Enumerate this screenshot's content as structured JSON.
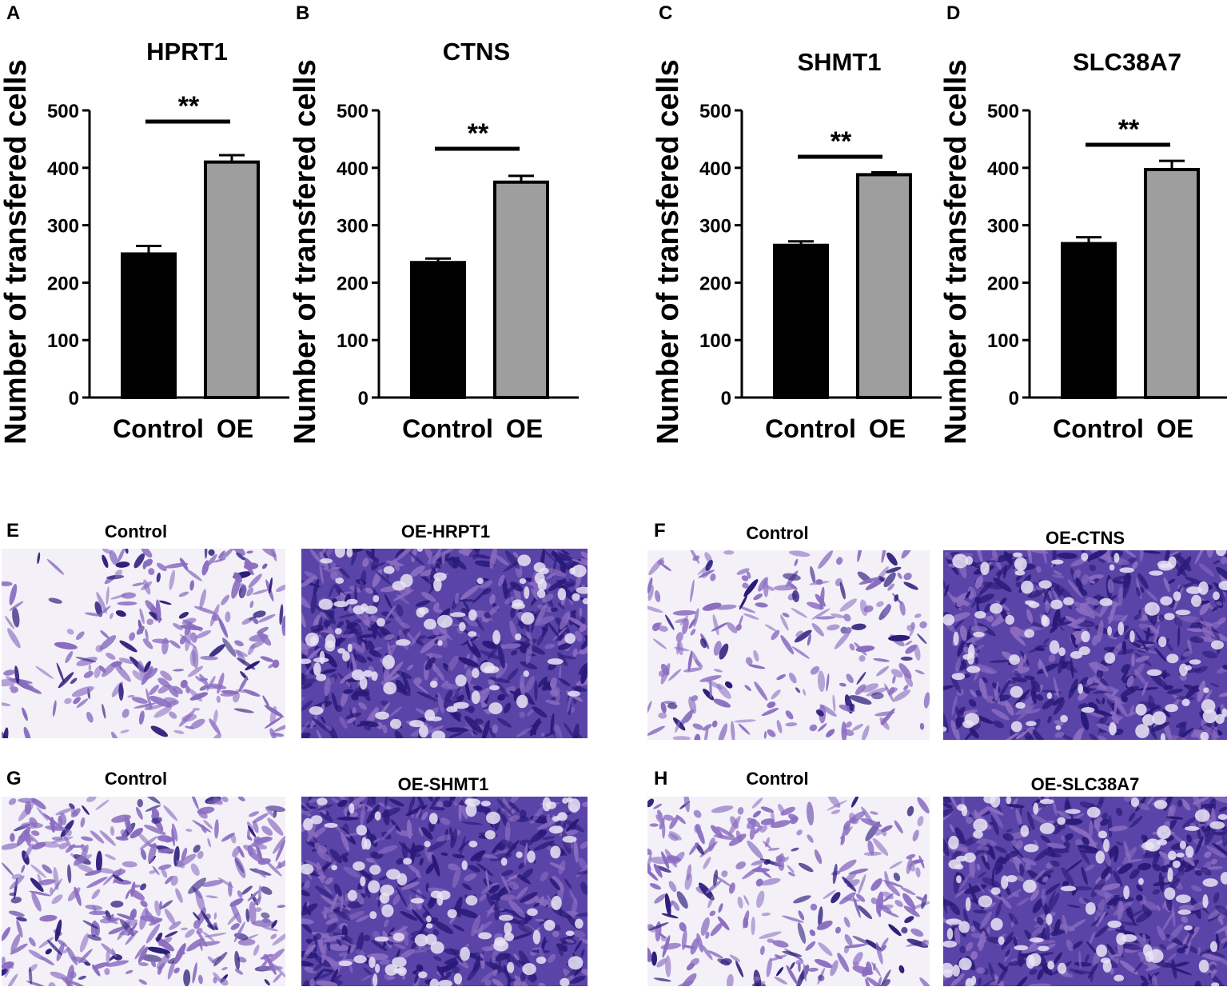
{
  "chart_data": [
    {
      "panel": "A",
      "type": "bar",
      "title": "HPRT1",
      "ylabel": "Number of  transfered cells",
      "categories": [
        "Control",
        "OE"
      ],
      "values": [
        250,
        410
      ],
      "errors": [
        14,
        12
      ],
      "bar_colors": [
        "#000000",
        "#9e9e9e"
      ],
      "ylim": [
        0,
        500
      ],
      "yticks": [
        "0",
        "100",
        "200",
        "300",
        "400",
        "500"
      ],
      "significance": "**"
    },
    {
      "panel": "B",
      "type": "bar",
      "title": "CTNS",
      "ylabel": "Number of  transfered cells",
      "categories": [
        "Control",
        "OE"
      ],
      "values": [
        235,
        375
      ],
      "errors": [
        7,
        11
      ],
      "bar_colors": [
        "#000000",
        "#9e9e9e"
      ],
      "ylim": [
        0,
        500
      ],
      "yticks": [
        "0",
        "100",
        "200",
        "300",
        "400",
        "500"
      ],
      "significance": "**"
    },
    {
      "panel": "C",
      "type": "bar",
      "title": "SHMT1",
      "ylabel": "Number of  transfered cells",
      "categories": [
        "Control",
        "OE"
      ],
      "values": [
        265,
        388
      ],
      "errors": [
        7,
        4
      ],
      "bar_colors": [
        "#000000",
        "#9e9e9e"
      ],
      "ylim": [
        0,
        500
      ],
      "yticks": [
        "0",
        "100",
        "200",
        "300",
        "400",
        "500"
      ],
      "significance": "**"
    },
    {
      "panel": "D",
      "type": "bar",
      "title": "SLC38A7",
      "ylabel": "Number of  transfered cells",
      "categories": [
        "Control",
        "OE"
      ],
      "values": [
        268,
        397
      ],
      "errors": [
        11,
        15
      ],
      "bar_colors": [
        "#000000",
        "#9e9e9e"
      ],
      "ylim": [
        0,
        500
      ],
      "yticks": [
        "0",
        "100",
        "200",
        "300",
        "400",
        "500"
      ],
      "significance": "**"
    }
  ],
  "image_panels": [
    {
      "panel": "E",
      "left_title": "Control",
      "right_title": "OE-HRPT1"
    },
    {
      "panel": "F",
      "left_title": "Control",
      "right_title": "OE-CTNS"
    },
    {
      "panel": "G",
      "left_title": "Control",
      "right_title": "OE-SHMT1"
    },
    {
      "panel": "H",
      "left_title": "Control",
      "right_title": "OE-SLC38A7"
    }
  ],
  "colors": {
    "stain_light": "#8a6cc0",
    "stain_dark": "#2a1a78",
    "background_light": "#f4f1f8"
  }
}
